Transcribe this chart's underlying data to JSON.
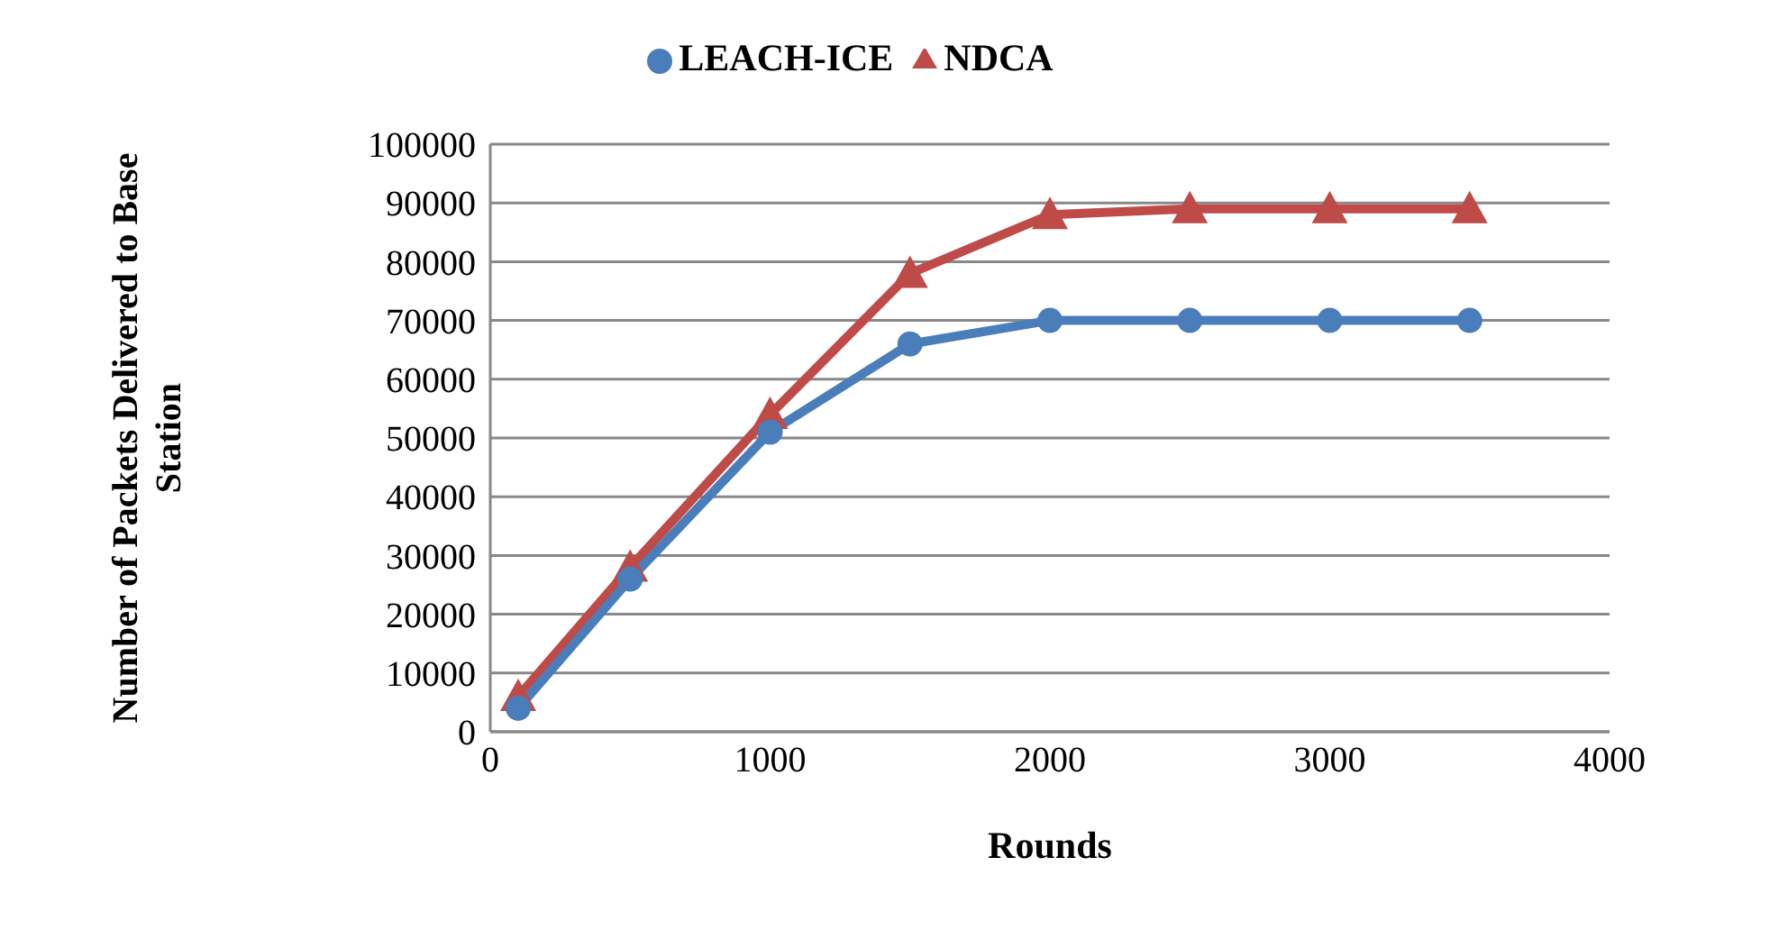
{
  "chart_data": {
    "type": "line",
    "xlabel": "Rounds",
    "ylabel": "Number of Packets Delivered to Base Station",
    "x": [
      100,
      500,
      1000,
      1500,
      2000,
      2500,
      3000,
      3500
    ],
    "series": [
      {
        "name": "LEACH-ICE",
        "color": "#4a7ebb",
        "marker": "circle",
        "values": [
          4000,
          26000,
          51000,
          66000,
          70000,
          70000,
          70000,
          70000
        ]
      },
      {
        "name": "NDCA",
        "color": "#be4b48",
        "marker": "triangle",
        "values": [
          6000,
          28000,
          54000,
          78000,
          88000,
          89000,
          89000,
          89000
        ]
      }
    ],
    "xlim": [
      0,
      4000
    ],
    "xticks": [
      0,
      1000,
      2000,
      3000,
      4000
    ],
    "ylim": [
      0,
      100000
    ],
    "yticks": [
      0,
      10000,
      20000,
      30000,
      40000,
      50000,
      60000,
      70000,
      80000,
      90000,
      100000
    ],
    "grid": "y",
    "legend": "top"
  }
}
